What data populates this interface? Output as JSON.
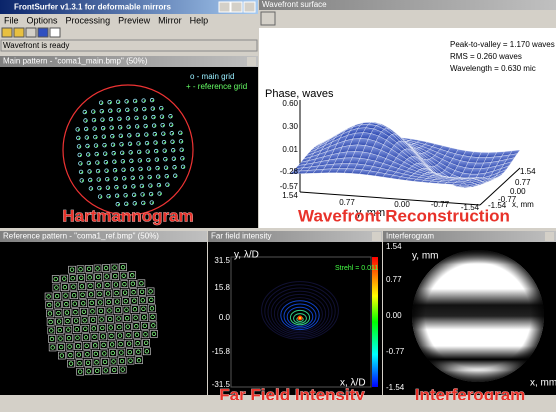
{
  "main_window": {
    "title": "FrontSurfer v1.3.1  for deformable mirrors",
    "menu": [
      "File",
      "Options",
      "Processing",
      "Preview",
      "Mirror",
      "Help"
    ],
    "status": "Wavefront is ready"
  },
  "main_pattern": {
    "title": "Main pattern - \"coma1_main.bmp\" (50%)",
    "legend": [
      "o - main grid",
      "+ - reference grid"
    ],
    "overlay": "Hartmannogram"
  },
  "wavefront": {
    "title": "Wavefront surface",
    "stats": [
      "Peak-to-valley = 1.170 waves",
      "RMS = 0.260 waves",
      "Wavelength = 0.630 mic"
    ],
    "z_label": "Phase, waves",
    "z_ticks": [
      "0.60",
      "0.30",
      "0.01",
      "-0.28",
      "-0.57"
    ],
    "y_label": "y, mm",
    "y_ticks": [
      "1.54",
      "0.77",
      "0.00",
      "-0.77",
      "-1.54"
    ],
    "x_label": "x, mm",
    "x_ticks": [
      "1.54",
      "0.77",
      "0.00",
      "-0.77",
      "-1.54"
    ],
    "overlay": "Wavefront Reconstruction"
  },
  "reference_pattern": {
    "title": "Reference pattern - \"coma1_ref.bmp\" (50%)"
  },
  "far_field": {
    "title": "Far field intensity",
    "y_label": "y, λ/D",
    "strehl": "Strehl = 0.011",
    "y_ticks": [
      "31.5",
      "15.8",
      "0.0",
      "-15.8",
      "-31.5"
    ],
    "x_label": "x, λ/D",
    "overlay": "Far Field Intensity"
  },
  "interferogram": {
    "title": "Interferogram",
    "y_label": "y, mm",
    "y_ticks": [
      "1.54",
      "0.77",
      "0.00",
      "-0.77",
      "-1.54"
    ],
    "x_label": "x, mm",
    "overlay": "Interferogram"
  }
}
